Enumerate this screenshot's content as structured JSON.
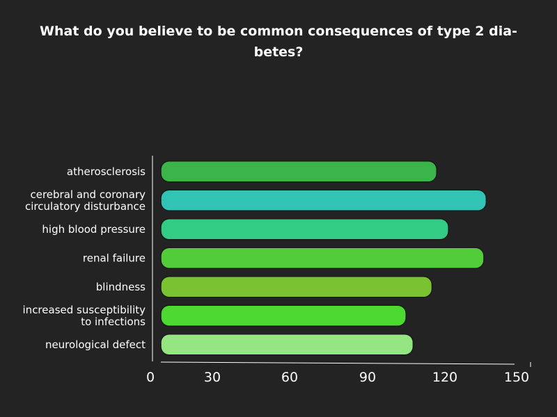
{
  "chart_data": {
    "type": "bar",
    "orientation": "horizontal",
    "title": "What do you believe to be common consequences of type 2 diabetes?",
    "title_display": [
      "What do you believe to be common consequences of type 2 dia-",
      "betes?"
    ],
    "categories": [
      "atherosclerosis",
      "cerebral and coronary circulatory disturbance",
      "high blood pressure",
      "renal failure",
      "blindness",
      "increased susceptibility to infections",
      "neurological defect"
    ],
    "category_display": [
      [
        "atherosclerosis"
      ],
      [
        "cerebral and coronary",
        "circulatory disturbance"
      ],
      [
        "high blood pressure"
      ],
      [
        "renal failure"
      ],
      [
        "blindness"
      ],
      [
        "increased susceptibility",
        "to infections"
      ],
      [
        "neurological defect"
      ]
    ],
    "values": [
      117,
      138,
      122,
      137,
      115,
      104,
      107
    ],
    "colors": [
      "#3bb54a",
      "#31c4b4",
      "#33cc85",
      "#53cc3a",
      "#7ac231",
      "#4dd932",
      "#95e683"
    ],
    "xlim": [
      0,
      150
    ],
    "xticks": [
      "0",
      "30",
      "60",
      "90",
      "120",
      "150"
    ],
    "grid": false,
    "legend": "none"
  }
}
